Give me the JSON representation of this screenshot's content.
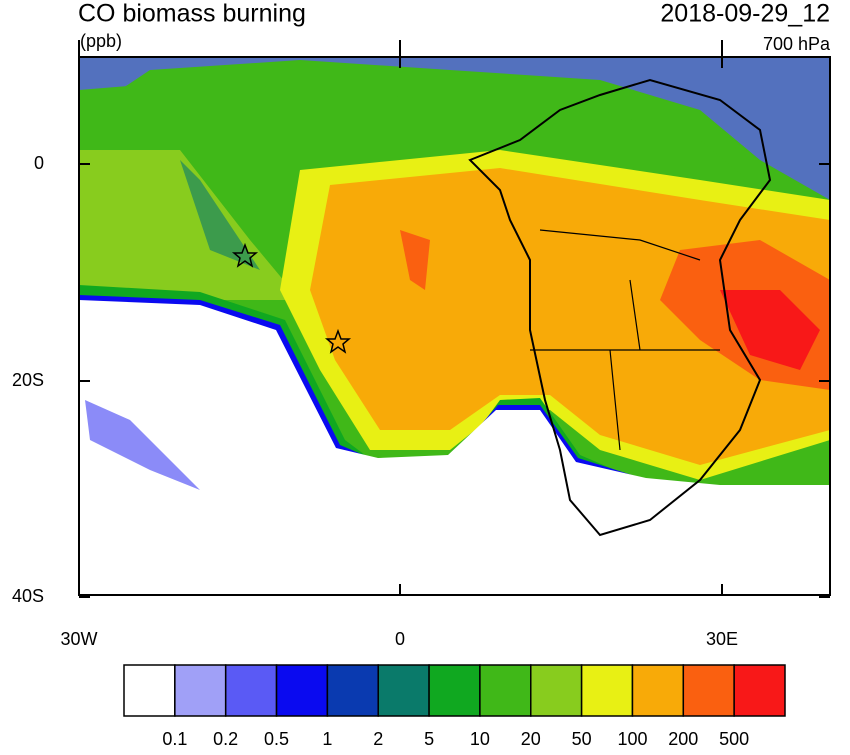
{
  "header": {
    "title": "CO biomass burning",
    "date": "2018-09-29_12",
    "units": "(ppb)",
    "level": "700 hPa"
  },
  "axes": {
    "lat_labels": [
      "0",
      "20S",
      "40S"
    ],
    "lon_labels": [
      "30W",
      "0",
      "30E"
    ]
  },
  "colorbar": {
    "colors": [
      "#ffffff",
      "#a0a0f7",
      "#5a5af5",
      "#0a0af0",
      "#0a3ab0",
      "#0a7a6a",
      "#10a820",
      "#40b818",
      "#88cc1e",
      "#e8f014",
      "#f8aa08",
      "#fa6010",
      "#f81818"
    ],
    "labels": [
      0.1,
      0.2,
      0.5,
      1,
      2,
      5,
      10,
      20,
      50,
      100,
      200,
      500
    ]
  }
}
